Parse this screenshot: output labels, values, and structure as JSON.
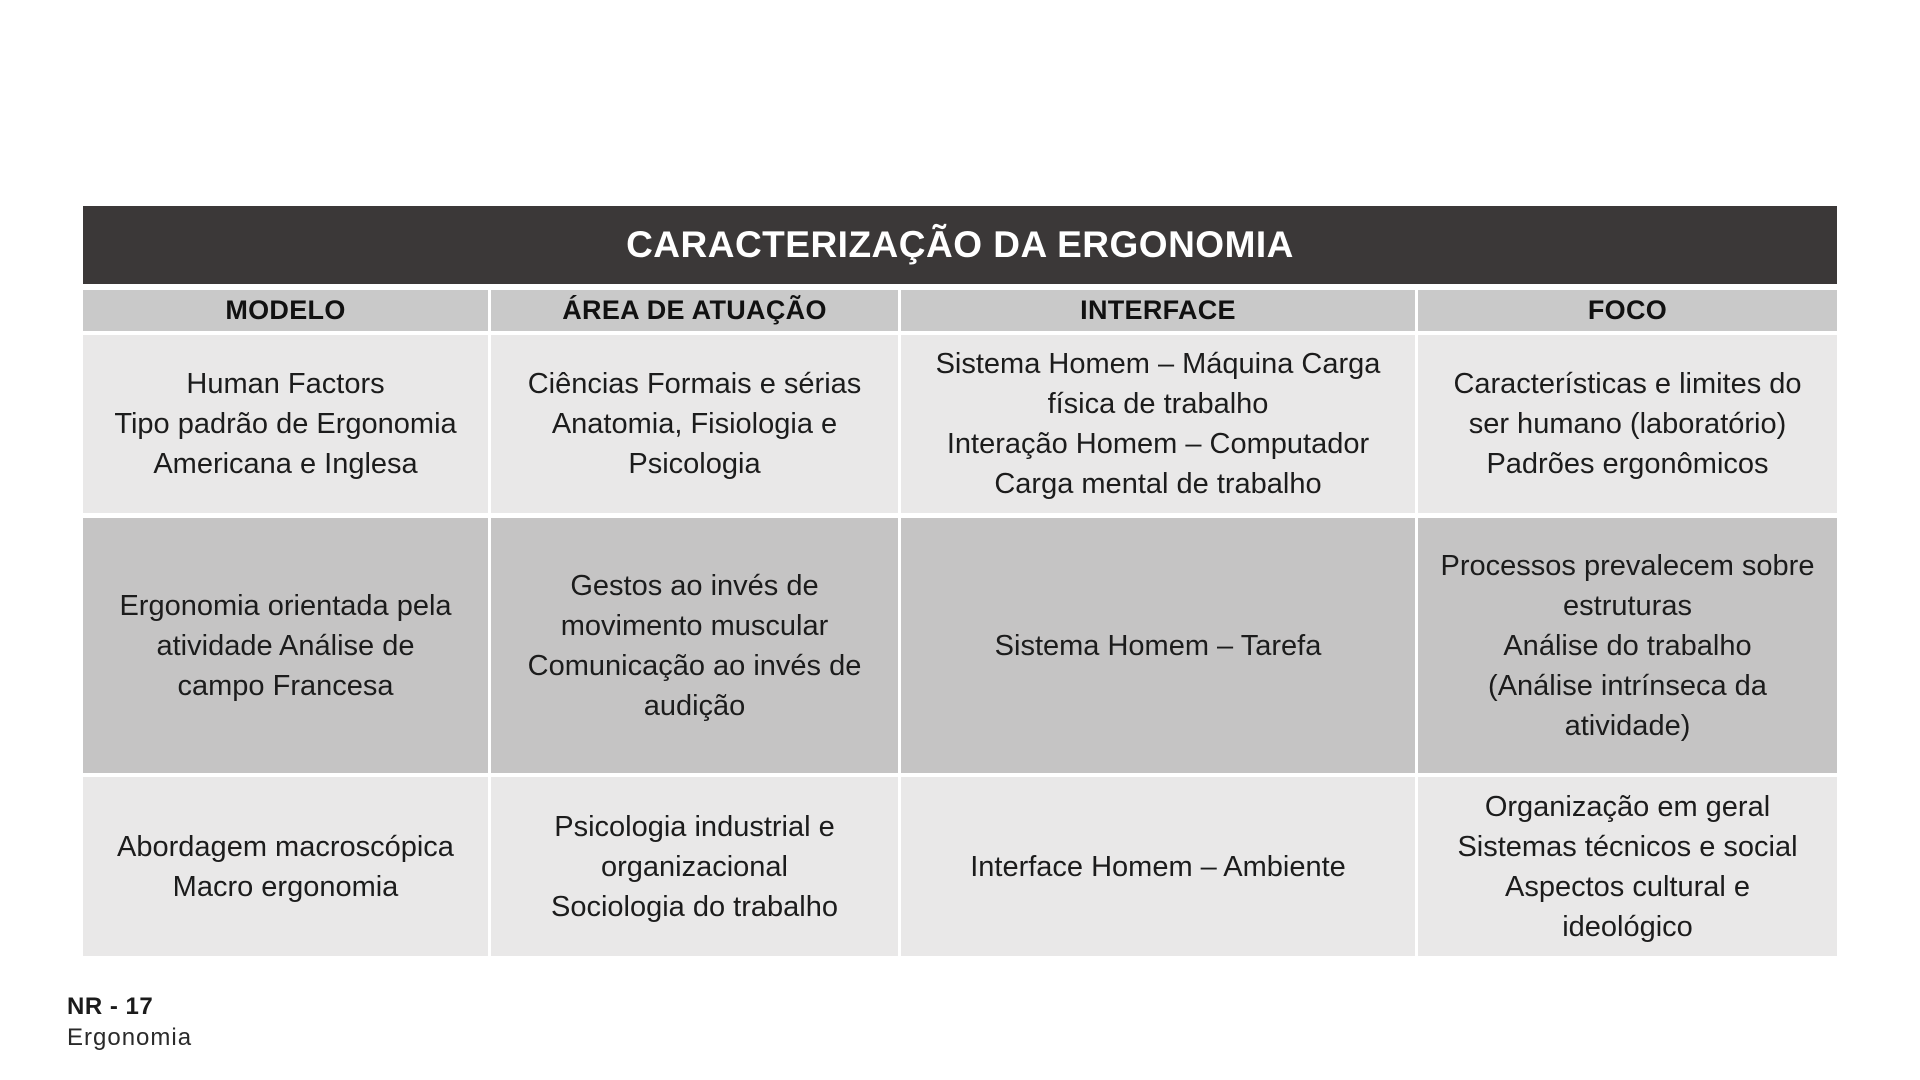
{
  "table": {
    "title": "CARACTERIZAÇÃO DA ERGONOMIA",
    "columns": [
      "MODELO",
      "ÁREA DE ATUAÇÃO",
      "INTERFACE",
      "FOCO"
    ],
    "rows": [
      {
        "shade": "light",
        "cells": [
          "Human Factors\nTipo padrão de Ergonomia\nAmericana e Inglesa",
          "Ciências Formais e sérias\nAnatomia, Fisiologia e\nPsicologia",
          "Sistema Homem – Máquina Carga\nfísica de trabalho\nInteração Homem – Computador\nCarga mental de trabalho",
          "Características e limites do\nser humano (laboratório)\nPadrões ergonômicos"
        ]
      },
      {
        "shade": "dark",
        "cells": [
          "Ergonomia orientada pela\natividade Análise de\ncampo Francesa",
          "Gestos ao invés de\nmovimento muscular\nComunicação ao invés de\naudição",
          "Sistema Homem – Tarefa",
          "Processos prevalecem sobre\nestruturas\nAnálise do trabalho\n(Análise intrínseca da\natividade)"
        ]
      },
      {
        "shade": "light",
        "cells": [
          "Abordagem macroscópica\nMacro ergonomia",
          "Psicologia industrial e\norganizacional\nSociologia do trabalho",
          "Interface Homem – Ambiente",
          "Organização em geral\nSistemas técnicos e social\nAspectos cultural e\nideológico"
        ]
      }
    ],
    "colors": {
      "title_bar_bg": "#3b3838",
      "title_text": "#ffffff",
      "header_bg": "#c9c9c9",
      "row_light_bg": "#e9e8e8",
      "row_dark_bg": "#c5c4c4",
      "cell_text": "#1c1c1c",
      "grid_gap": "#ffffff"
    }
  },
  "footer": {
    "line1": "NR - 17",
    "line2": "Ergonomia"
  }
}
